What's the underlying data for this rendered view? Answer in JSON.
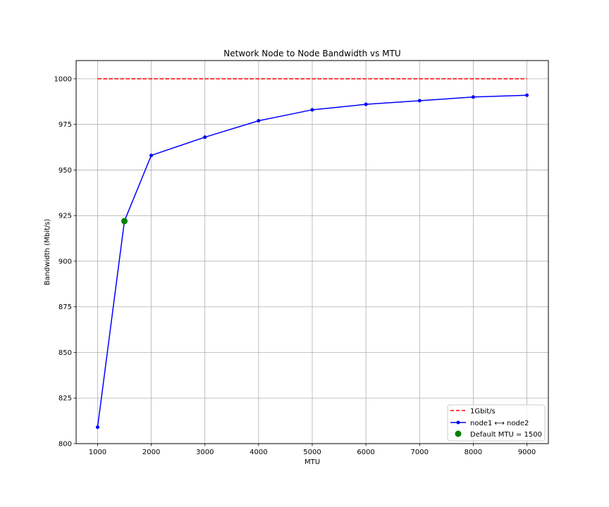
{
  "chart_data": {
    "type": "line",
    "title": "Network Node to Node Bandwidth vs MTU",
    "xlabel": "MTU",
    "ylabel": "Bandwidth (Mbit/s)",
    "xlim": [
      600,
      9400
    ],
    "ylim": [
      800,
      1010
    ],
    "xticks": [
      1000,
      2000,
      3000,
      4000,
      5000,
      6000,
      7000,
      8000,
      9000
    ],
    "yticks": [
      800,
      825,
      850,
      875,
      900,
      925,
      950,
      975,
      1000
    ],
    "grid": true,
    "legend_position": "lower-right",
    "series": [
      {
        "name": "1Gbit/s",
        "kind": "dashed-line",
        "color": "#ff0000",
        "x": [
          1000,
          9000
        ],
        "y": [
          1000,
          1000
        ]
      },
      {
        "name": "node1 ⟷ node2",
        "kind": "line-markers",
        "color": "#0000ff",
        "x": [
          1000,
          1500,
          2000,
          3000,
          4000,
          5000,
          6000,
          7000,
          8000,
          9000
        ],
        "y": [
          809,
          922,
          958,
          968,
          977,
          983,
          986,
          988,
          990,
          991
        ]
      },
      {
        "name": "Default MTU = 1500",
        "kind": "point",
        "color": "#008000",
        "x": [
          1500
        ],
        "y": [
          922
        ]
      }
    ]
  }
}
